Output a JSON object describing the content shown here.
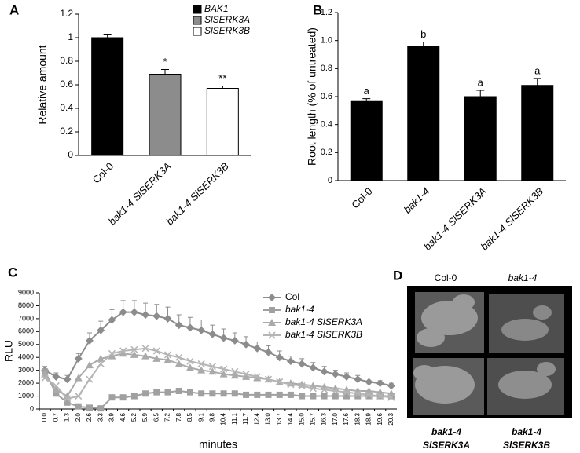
{
  "chart_data": [
    {
      "type": "bar",
      "panel": "A",
      "ylabel": "Relative amount",
      "categories": [
        "Col-0",
        "bak1-4 SlSERK3A",
        "bak1-4 SlSERK3B"
      ],
      "series": [
        {
          "name": "BAK1",
          "color": "#000000",
          "values": [
            1.0,
            null,
            null
          ]
        },
        {
          "name": "SlSERK3A",
          "color": "#8c8c8c",
          "values": [
            null,
            0.69,
            null
          ]
        },
        {
          "name": "SlSERK3B",
          "color": "#ffffff",
          "values": [
            null,
            null,
            0.57
          ]
        }
      ],
      "errors": [
        0.03,
        0.04,
        0.02
      ],
      "annotations": [
        null,
        "*",
        "**"
      ],
      "ylim": [
        0,
        1.2
      ],
      "yticks": [
        0,
        0.2,
        0.4,
        0.6,
        0.8,
        1,
        1.2
      ]
    },
    {
      "type": "bar",
      "panel": "B",
      "ylabel": "Root length (% of untreated)",
      "categories": [
        "Col-0",
        "bak1-4",
        "bak1-4 SlSERK3A",
        "bak1-4 SlSERK3B"
      ],
      "values": [
        0.565,
        0.96,
        0.6,
        0.68
      ],
      "color": "#000000",
      "errors": [
        0.02,
        0.03,
        0.045,
        0.05
      ],
      "annotations": [
        "a",
        "b",
        "a",
        "a"
      ],
      "ylim": [
        0,
        1.2
      ],
      "yticks": [
        0,
        0.2,
        0.4,
        0.6,
        0.8,
        {
          "value": 1,
          "label": "1.0"
        },
        1.2
      ]
    },
    {
      "type": "line",
      "panel": "C",
      "ylabel": "RLU",
      "xlabel": "minutes",
      "categories": [
        "0.0",
        "0.7",
        "1.3",
        "2.0",
        "2.6",
        "3.3",
        "3.9",
        "4.6",
        "5.2",
        "5.9",
        "6.5",
        "7.2",
        "7.8",
        "8.5",
        "9.1",
        "9.8",
        "10.4",
        "11.1",
        "11.7",
        "12.4",
        "13.0",
        "13.7",
        "14.4",
        "15.0",
        "15.7",
        "16.3",
        "17.0",
        "17.6",
        "18.3",
        "18.9",
        "19.6",
        "20.3"
      ],
      "series": [
        {
          "name": "Col",
          "color": "#8c8c8c",
          "marker": "diamond",
          "values": [
            3000,
            2500,
            2300,
            3900,
            5300,
            6100,
            6900,
            7500,
            7500,
            7300,
            7200,
            7000,
            6500,
            6300,
            6100,
            5800,
            5500,
            5300,
            5000,
            4700,
            4400,
            4000,
            3700,
            3500,
            3200,
            2900,
            2700,
            2500,
            2300,
            2100,
            2000,
            1800
          ],
          "errors": [
            300,
            300,
            300,
            400,
            600,
            700,
            800,
            900,
            900,
            900,
            900,
            900,
            800,
            800,
            800,
            700,
            700,
            600,
            600,
            500,
            500,
            500,
            400,
            400,
            400,
            400,
            300,
            300,
            300,
            300,
            200,
            200
          ]
        },
        {
          "name": "bak1-4",
          "color": "#a0a0a0",
          "marker": "square",
          "values": [
            2900,
            1200,
            500,
            200,
            100,
            50,
            900,
            900,
            1000,
            1200,
            1300,
            1300,
            1400,
            1300,
            1200,
            1200,
            1200,
            1200,
            1100,
            1100,
            1100,
            1100,
            1100,
            1000,
            1000,
            1000,
            1000,
            1000,
            1000,
            1000,
            1000,
            1000
          ]
        },
        {
          "name": "bak1-4 SlSERK3A",
          "color": "#aaaaaa",
          "marker": "triangle",
          "values": [
            2700,
            1500,
            1000,
            2400,
            3400,
            3900,
            4100,
            4300,
            4200,
            4100,
            3900,
            3800,
            3500,
            3200,
            3000,
            2900,
            2700,
            2600,
            2500,
            2400,
            2300,
            2100,
            2000,
            1900,
            1800,
            1700,
            1600,
            1500,
            1400,
            1400,
            1300,
            1200
          ]
        },
        {
          "name": "bak1-4 SlSERK3B",
          "color": "#b5b5b5",
          "marker": "x",
          "values": [
            2400,
            1800,
            800,
            1000,
            2300,
            3500,
            4300,
            4500,
            4600,
            4700,
            4500,
            4200,
            4000,
            3700,
            3500,
            3300,
            3100,
            2900,
            2700,
            2500,
            2300,
            2100,
            1900,
            1800,
            1600,
            1500,
            1400,
            1300,
            1200,
            1100,
            1000,
            900
          ]
        }
      ],
      "ylim": [
        0,
        9000
      ],
      "yticks": [
        0,
        1000,
        2000,
        3000,
        4000,
        5000,
        6000,
        7000,
        8000,
        9000
      ]
    }
  ],
  "photo": {
    "panel": "D",
    "top_labels": [
      "Col-0",
      "bak1-4"
    ],
    "bottom_labels": [
      [
        "bak1-4",
        "SlSERK3A"
      ],
      [
        "bak1-4",
        "SlSERK3B"
      ]
    ]
  }
}
